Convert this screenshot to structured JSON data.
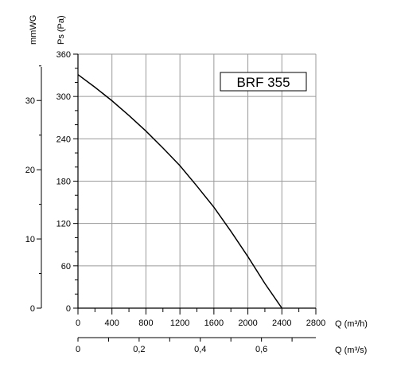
{
  "chart_data": {
    "type": "line",
    "title": "BRF 355",
    "series": [
      {
        "values_x": [
          0,
          200,
          400,
          600,
          800,
          1000,
          1200,
          1400,
          1600,
          1800,
          2000,
          2200,
          2400
        ],
        "values_y": [
          331,
          313,
          294,
          273,
          251,
          227,
          202,
          173,
          143,
          109,
          73,
          35,
          0
        ]
      }
    ],
    "x_axis": {
      "label": "Q (m³/h)",
      "ticks": [
        "0",
        "400",
        "800",
        "1200",
        "1600",
        "2000",
        "2400",
        "2800"
      ],
      "range": [
        0,
        2800
      ]
    },
    "y_axis": {
      "label": "Ps (Pa)",
      "ticks": [
        "0",
        "60",
        "120",
        "180",
        "240",
        "300",
        "360"
      ],
      "range": [
        0,
        360
      ]
    },
    "secondary_x_axis": {
      "label": "Q (m³/s)",
      "ticks": [
        "0",
        "0,2",
        "0,4",
        "0,6"
      ],
      "tick_values": [
        0,
        0.2,
        0.4,
        0.6
      ],
      "range": [
        0,
        0.7778
      ]
    },
    "secondary_y_axis": {
      "label": "mmWG",
      "ticks": [
        "0",
        "10",
        "20",
        "30"
      ],
      "tick_values": [
        0,
        10,
        20,
        30
      ],
      "range": [
        0,
        36.7
      ]
    },
    "grid": true
  }
}
